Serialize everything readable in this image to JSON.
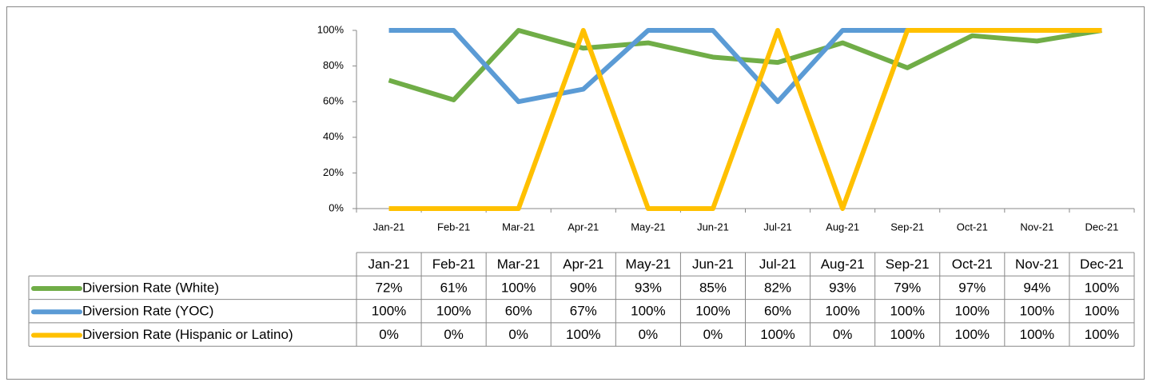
{
  "chart_data": {
    "type": "line",
    "categories": [
      "Jan-21",
      "Feb-21",
      "Mar-21",
      "Apr-21",
      "May-21",
      "Jun-21",
      "Jul-21",
      "Aug-21",
      "Sep-21",
      "Oct-21",
      "Nov-21",
      "Dec-21"
    ],
    "series": [
      {
        "name": "Diversion Rate (White)",
        "color": "#70ad47",
        "values": [
          72,
          61,
          100,
          90,
          93,
          85,
          82,
          93,
          79,
          97,
          94,
          100
        ],
        "value_labels": [
          "72%",
          "61%",
          "100%",
          "90%",
          "93%",
          "85%",
          "82%",
          "93%",
          "79%",
          "97%",
          "94%",
          "100%"
        ]
      },
      {
        "name": "Diversion Rate (YOC)",
        "color": "#5b9bd5",
        "values": [
          100,
          100,
          60,
          67,
          100,
          100,
          60,
          100,
          100,
          100,
          100,
          100
        ],
        "value_labels": [
          "100%",
          "100%",
          "60%",
          "67%",
          "100%",
          "100%",
          "60%",
          "100%",
          "100%",
          "100%",
          "100%",
          "100%"
        ]
      },
      {
        "name": "Diversion Rate (Hispanic or Latino)",
        "color": "#ffc000",
        "values": [
          0,
          0,
          0,
          100,
          0,
          0,
          100,
          0,
          100,
          100,
          100,
          100
        ],
        "value_labels": [
          "0%",
          "0%",
          "0%",
          "100%",
          "0%",
          "0%",
          "100%",
          "0%",
          "100%",
          "100%",
          "100%",
          "100%"
        ]
      }
    ],
    "ylim": [
      0,
      100
    ],
    "yticks": [
      {
        "value": 0,
        "label": "0%"
      },
      {
        "value": 20,
        "label": "20%"
      },
      {
        "value": 40,
        "label": "40%"
      },
      {
        "value": 60,
        "label": "60%"
      },
      {
        "value": 80,
        "label": "80%"
      },
      {
        "value": 100,
        "label": "100%"
      }
    ],
    "grid": false
  }
}
